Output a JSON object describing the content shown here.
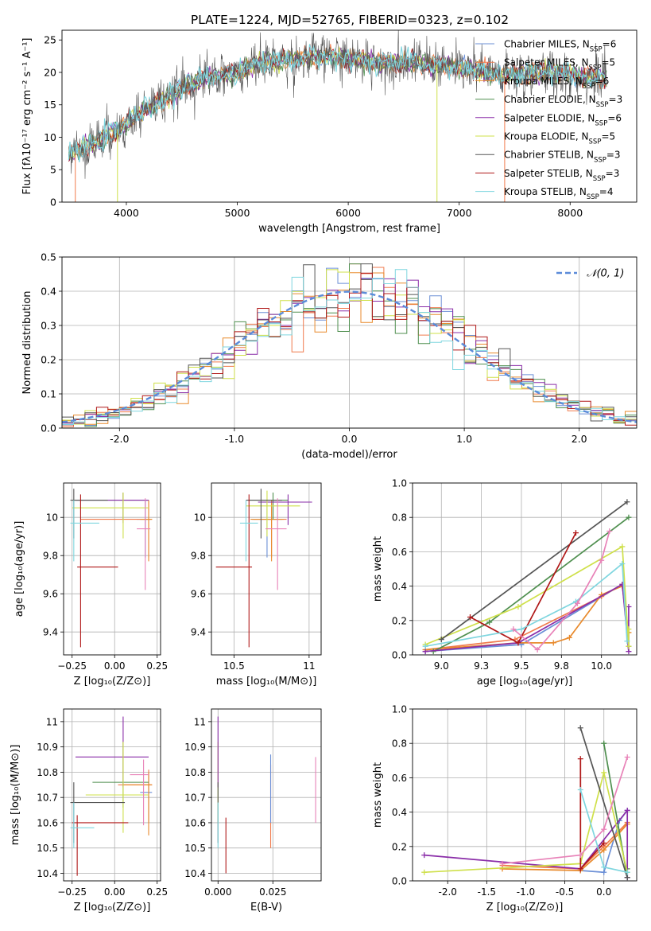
{
  "title": "PLATE=1224, MJD=52765, FIBERID=0323, z=0.102",
  "palette": {
    "Chabrier MILES": "#6b8fd6",
    "Salpeter MILES": "#f07a4c",
    "Kroupa MILES": "#e88a2c",
    "Chabrier ELODIE": "#4f8f4f",
    "Salpeter ELODIE": "#8a2da8",
    "Kroupa ELODIE": "#cfe04a",
    "Chabrier STELIB": "#555555",
    "Salpeter STELIB": "#b01818",
    "Kroupa STELIB": "#7fd6df",
    "extra_pink": "#e882b8",
    "gauss": "#5b8bd9"
  },
  "chart_data": [
    {
      "id": "spectrum",
      "type": "line",
      "xlabel": "wavelength [Angstrom, rest frame]",
      "ylabel": "Flux [fλ10⁻¹⁷ erg cm⁻² s⁻¹ A⁻¹]",
      "xlim": [
        3420,
        8600
      ],
      "ylim": [
        0,
        26.5
      ],
      "xticks": [
        4000,
        5000,
        6000,
        7000,
        8000
      ],
      "yticks": [
        0,
        5,
        10,
        15,
        20,
        25
      ],
      "grid": false,
      "legend_position": "top-right",
      "legend": [
        {
          "imf": "Chabrier",
          "lib": "MILES",
          "n": "6"
        },
        {
          "imf": "Salpeter",
          "lib": "MILES",
          "n": "5"
        },
        {
          "imf": "Kroupa",
          "lib": "MILES",
          "n": "6"
        },
        {
          "imf": "Chabrier",
          "lib": "ELODIE",
          "n": "3"
        },
        {
          "imf": "Salpeter",
          "lib": "ELODIE",
          "n": "6"
        },
        {
          "imf": "Kroupa",
          "lib": "ELODIE",
          "n": "5"
        },
        {
          "imf": "Chabrier",
          "lib": "STELIB",
          "n": "3"
        },
        {
          "imf": "Salpeter",
          "lib": "STELIB",
          "n": "3"
        },
        {
          "imf": "Kroupa",
          "lib": "STELIB",
          "n": "4"
        }
      ],
      "continuum_anchors": {
        "x": [
          3500,
          3700,
          3900,
          4000,
          4100,
          4300,
          4500,
          4700,
          5000,
          5200,
          5500,
          5800,
          6000,
          6300,
          6600,
          6900,
          7100,
          7400,
          7800,
          8300
        ],
        "y": [
          7.5,
          9,
          11,
          12,
          13.5,
          15.5,
          17.5,
          19,
          20,
          21.5,
          22,
          22.5,
          22,
          21.5,
          21.5,
          21,
          20.5,
          19.5,
          20,
          19
        ]
      },
      "dips": [
        {
          "x": 3540,
          "y": 0
        },
        {
          "x": 3920,
          "y": 0
        },
        {
          "x": 6800,
          "y": 0
        },
        {
          "x": 7410,
          "y": 0
        }
      ]
    },
    {
      "id": "residuals",
      "type": "step-histogram",
      "xlabel": "(data-model)/error",
      "ylabel": "Normed distribution",
      "xlim": [
        -2.5,
        2.5
      ],
      "ylim": [
        0,
        0.5
      ],
      "xticks": [
        -2,
        -1,
        0,
        1,
        2
      ],
      "yticks": [
        0,
        0.1,
        0.2,
        0.3,
        0.4,
        0.5
      ],
      "grid": true,
      "legend_label": "𝒩(0, 1)",
      "legend_position": "top-right",
      "bin_width": 0.1,
      "bins_start": -2.5
    },
    {
      "id": "age-vs-Z",
      "type": "errorbar",
      "xlabel": "Z [log₁₀(Z/Z⊙)]",
      "ylabel": "age  [log₁₀(age/yr)]",
      "xlim": [
        -0.3,
        0.27
      ],
      "ylim": [
        9.28,
        10.18
      ],
      "xticks": [
        -0.25,
        0.0,
        0.25
      ],
      "yticks": [
        9.4,
        9.6,
        9.8,
        10.0
      ],
      "grid": true,
      "points": [
        {
          "model": "Chabrier MILES",
          "x": 0.18,
          "y": 9.99,
          "xerr": [
            0.05,
            0.03
          ],
          "yerr": [
            0.2,
            0.1
          ]
        },
        {
          "model": "Salpeter MILES",
          "x": 0.2,
          "y": 9.99,
          "xerr": [
            0.4,
            0.02
          ],
          "yerr": [
            0.2,
            0.1
          ]
        },
        {
          "model": "Kroupa MILES",
          "x": 0.2,
          "y": 9.99,
          "xerr": [
            0.05,
            0.02
          ],
          "yerr": [
            0.22,
            0.1
          ]
        },
        {
          "model": "Chabrier ELODIE",
          "x": 0.05,
          "y": 10.09,
          "xerr": [
            0.3,
            0.15
          ],
          "yerr": [
            0.1,
            0.04
          ]
        },
        {
          "model": "Salpeter ELODIE",
          "x": 0.05,
          "y": 10.09,
          "xerr": [
            0.28,
            0.15
          ],
          "yerr": [
            0.12,
            0.04
          ]
        },
        {
          "model": "Kroupa ELODIE",
          "x": 0.05,
          "y": 10.05,
          "xerr": [
            0.3,
            0.15
          ],
          "yerr": [
            0.16,
            0.08
          ]
        },
        {
          "model": "Chabrier STELIB",
          "x": -0.24,
          "y": 10.09,
          "xerr": [
            0.02,
            0.2
          ],
          "yerr": [
            0.2,
            0.06
          ]
        },
        {
          "model": "Salpeter STELIB",
          "x": -0.2,
          "y": 9.74,
          "xerr": [
            0.02,
            0.22
          ],
          "yerr": [
            0.42,
            0.38
          ]
        },
        {
          "model": "Kroupa STELIB",
          "x": -0.24,
          "y": 9.97,
          "xerr": [
            0.02,
            0.15
          ],
          "yerr": [
            0.2,
            0.12
          ]
        },
        {
          "model": "extra_pink",
          "x": 0.18,
          "y": 9.94,
          "xerr": [
            0.05,
            0.03
          ],
          "yerr": [
            0.32,
            0.16
          ]
        }
      ]
    },
    {
      "id": "age-vs-mass",
      "type": "errorbar",
      "xlabel": "mass [log₁₀(M/M⊙)]",
      "ylabel": "",
      "xlim": [
        10.35,
        11.08
      ],
      "ylim": [
        9.28,
        10.18
      ],
      "xticks": [
        10.5,
        11.0
      ],
      "yticks": [
        9.4,
        9.6,
        9.8,
        10.0
      ],
      "grid": true,
      "points": [
        {
          "model": "Chabrier MILES",
          "x": 10.72,
          "y": 9.99,
          "xerr": [
            0.1,
            0.1
          ],
          "yerr": [
            0.2,
            0.1
          ]
        },
        {
          "model": "Salpeter MILES",
          "x": 10.75,
          "y": 9.99,
          "xerr": [
            0.12,
            0.1
          ],
          "yerr": [
            0.2,
            0.1
          ]
        },
        {
          "model": "Kroupa MILES",
          "x": 10.75,
          "y": 9.99,
          "xerr": [
            0.14,
            0.08
          ],
          "yerr": [
            0.22,
            0.1
          ]
        },
        {
          "model": "Chabrier ELODIE",
          "x": 10.76,
          "y": 10.09,
          "xerr": [
            0.16,
            0.1
          ],
          "yerr": [
            0.1,
            0.04
          ]
        },
        {
          "model": "Salpeter ELODIE",
          "x": 10.86,
          "y": 10.08,
          "xerr": [
            0.2,
            0.16
          ],
          "yerr": [
            0.12,
            0.04
          ]
        },
        {
          "model": "Kroupa ELODIE",
          "x": 10.72,
          "y": 10.06,
          "xerr": [
            0.14,
            0.22
          ],
          "yerr": [
            0.16,
            0.08
          ]
        },
        {
          "model": "Chabrier STELIB",
          "x": 10.68,
          "y": 10.09,
          "xerr": [
            0.1,
            0.14
          ],
          "yerr": [
            0.2,
            0.06
          ]
        },
        {
          "model": "Salpeter STELIB",
          "x": 10.6,
          "y": 9.74,
          "xerr": [
            0.22,
            0.02
          ],
          "yerr": [
            0.42,
            0.38
          ]
        },
        {
          "model": "Kroupa STELIB",
          "x": 10.58,
          "y": 9.97,
          "xerr": [
            0.04,
            0.08
          ],
          "yerr": [
            0.2,
            0.12
          ]
        },
        {
          "model": "extra_pink",
          "x": 10.79,
          "y": 9.94,
          "xerr": [
            0.08,
            0.06
          ],
          "yerr": [
            0.32,
            0.16
          ]
        }
      ]
    },
    {
      "id": "weight-vs-age",
      "type": "line",
      "xlabel": "age  [log₁₀(age/yr)]",
      "ylabel": "mass weight",
      "xlim": [
        8.82,
        10.22
      ],
      "ylim": [
        0,
        1
      ],
      "xticks": [
        9.0,
        9.25,
        9.5,
        9.75,
        10.0
      ],
      "yticks": [
        0.0,
        0.2,
        0.4,
        0.6,
        0.8,
        1.0
      ],
      "grid": true,
      "series": [
        {
          "model": "Chabrier MILES",
          "x": [
            8.9,
            9.5,
            10.13,
            10.17
          ],
          "y": [
            0.02,
            0.06,
            0.41,
            0.05
          ]
        },
        {
          "model": "Salpeter MILES",
          "x": [
            8.9,
            9.46,
            10.0,
            10.13
          ],
          "y": [
            0.03,
            0.09,
            0.34,
            0.41
          ]
        },
        {
          "model": "Kroupa MILES",
          "x": [
            8.9,
            9.48,
            9.7,
            9.8,
            10.0,
            10.13,
            10.17
          ],
          "y": [
            0.03,
            0.07,
            0.07,
            0.1,
            0.35,
            0.4,
            0.13
          ]
        },
        {
          "model": "Chabrier ELODIE",
          "x": [
            8.95,
            9.3,
            10.17
          ],
          "y": [
            0.02,
            0.19,
            0.8
          ]
        },
        {
          "model": "Salpeter ELODIE",
          "x": [
            8.9,
            9.48,
            10.13,
            10.17,
            10.17
          ],
          "y": [
            0.02,
            0.07,
            0.41,
            0.02,
            0.28
          ]
        },
        {
          "model": "Kroupa ELODIE",
          "x": [
            8.9,
            9.48,
            10.13,
            10.17,
            10.17
          ],
          "y": [
            0.06,
            0.28,
            0.63,
            0.05,
            0.15
          ]
        },
        {
          "model": "Chabrier STELIB",
          "x": [
            9.0,
            10.16
          ],
          "y": [
            0.09,
            0.89
          ]
        },
        {
          "model": "Salpeter STELIB",
          "x": [
            9.18,
            9.48,
            9.84
          ],
          "y": [
            0.22,
            0.07,
            0.71
          ]
        },
        {
          "model": "Kroupa STELIB",
          "x": [
            8.9,
            9.5,
            9.84,
            10.13,
            10.16
          ],
          "y": [
            0.05,
            0.15,
            0.31,
            0.53,
            0.08
          ]
        },
        {
          "model": "extra_pink",
          "x": [
            9.45,
            9.6,
            9.85,
            10.0,
            10.05
          ],
          "y": [
            0.15,
            0.03,
            0.3,
            0.55,
            0.72
          ]
        }
      ]
    },
    {
      "id": "mass-vs-Z",
      "type": "errorbar",
      "xlabel": "Z [log₁₀(Z/Z⊙)]",
      "ylabel": "mass [log₁₀(M/M⊙)]",
      "xlim": [
        -0.3,
        0.27
      ],
      "ylim": [
        10.37,
        11.05
      ],
      "xticks": [
        -0.25,
        0.0,
        0.25
      ],
      "yticks": [
        10.4,
        10.5,
        10.6,
        10.7,
        10.8,
        10.9,
        11.0
      ],
      "grid": true,
      "points": [
        {
          "model": "Chabrier MILES",
          "x": 0.2,
          "y": 10.72,
          "xerr": [
            0.05,
            0.02
          ],
          "yerr": [
            0.12,
            0.08
          ]
        },
        {
          "model": "Salpeter MILES",
          "x": 0.2,
          "y": 10.75,
          "xerr": [
            0.18,
            0.02
          ],
          "yerr": [
            0.15,
            0.06
          ]
        },
        {
          "model": "Kroupa MILES",
          "x": 0.2,
          "y": 10.75,
          "xerr": [
            0.15,
            0.02
          ],
          "yerr": [
            0.2,
            0.05
          ]
        },
        {
          "model": "Chabrier ELODIE",
          "x": 0.05,
          "y": 10.76,
          "xerr": [
            0.18,
            0.15
          ],
          "yerr": [
            0.1,
            0.16
          ]
        },
        {
          "model": "Salpeter ELODIE",
          "x": 0.05,
          "y": 10.86,
          "xerr": [
            0.28,
            0.15
          ],
          "yerr": [
            0.12,
            0.16
          ]
        },
        {
          "model": "Kroupa ELODIE",
          "x": 0.05,
          "y": 10.71,
          "xerr": [
            0.22,
            0.15
          ],
          "yerr": [
            0.15,
            0.21
          ]
        },
        {
          "model": "Chabrier STELIB",
          "x": -0.24,
          "y": 10.68,
          "xerr": [
            0.02,
            0.3
          ],
          "yerr": [
            0.16,
            0.08
          ]
        },
        {
          "model": "Salpeter STELIB",
          "x": -0.22,
          "y": 10.6,
          "xerr": [
            0.03,
            0.3
          ],
          "yerr": [
            0.21,
            0.03
          ]
        },
        {
          "model": "Kroupa STELIB",
          "x": -0.24,
          "y": 10.58,
          "xerr": [
            0.02,
            0.12
          ],
          "yerr": [
            0.08,
            0.1
          ]
        },
        {
          "model": "extra_pink",
          "x": 0.17,
          "y": 10.79,
          "xerr": [
            0.08,
            0.03
          ],
          "yerr": [
            0.2,
            0.06
          ]
        }
      ]
    },
    {
      "id": "mass-vs-EBV",
      "type": "errorbar",
      "xlabel": "E(B-V)",
      "ylabel": "",
      "xlim": [
        -0.003,
        0.047
      ],
      "ylim": [
        10.37,
        11.05
      ],
      "xticks": [
        0.0,
        0.025
      ],
      "yticks": [
        10.4,
        10.5,
        10.6,
        10.7,
        10.8,
        10.9,
        11.0
      ],
      "grid": true,
      "points": [
        {
          "model": "Kroupa ELODIE",
          "x": 0.0,
          "y": 10.75,
          "yerr": [
            0.15,
            0.17
          ]
        },
        {
          "model": "Salpeter ELODIE",
          "x": 0.0,
          "y": 10.86,
          "yerr": [
            0.12,
            0.16
          ]
        },
        {
          "model": "Chabrier STELIB",
          "x": 0.0,
          "y": 10.68,
          "yerr": [
            0.16,
            0.08
          ]
        },
        {
          "model": "Kroupa STELIB",
          "x": 0.0,
          "y": 10.58,
          "yerr": [
            0.08,
            0.1
          ]
        },
        {
          "model": "Salpeter STELIB",
          "x": 0.0036,
          "y": 10.55,
          "yerr": [
            0.15,
            0.07
          ]
        },
        {
          "model": "Salpeter MILES",
          "x": 0.024,
          "y": 10.65,
          "yerr": [
            0.15,
            0.18
          ]
        },
        {
          "model": "Chabrier MILES",
          "x": 0.024,
          "y": 10.72,
          "yerr": [
            0.12,
            0.15
          ]
        },
        {
          "model": "extra_pink",
          "x": 0.0445,
          "y": 10.73,
          "yerr": [
            0.13,
            0.13
          ]
        }
      ]
    },
    {
      "id": "weight-vs-Z",
      "type": "line",
      "xlabel": "Z [log₁₀(Z/Z⊙)]",
      "ylabel": "mass weight",
      "xlim": [
        -2.45,
        0.42
      ],
      "ylim": [
        0,
        1
      ],
      "xticks": [
        -2.0,
        -1.5,
        -1.0,
        -0.5,
        0.0
      ],
      "yticks": [
        0.0,
        0.2,
        0.4,
        0.6,
        0.8,
        1.0
      ],
      "grid": true,
      "series": [
        {
          "model": "Chabrier MILES",
          "x": [
            -0.3,
            0.0,
            0.2,
            0.3
          ],
          "y": [
            0.06,
            0.05,
            0.35,
            0.41
          ]
        },
        {
          "model": "Salpeter MILES",
          "x": [
            -1.3,
            -0.3,
            0.0,
            0.3
          ],
          "y": [
            0.09,
            0.07,
            0.2,
            0.34
          ]
        },
        {
          "model": "Kroupa MILES",
          "x": [
            -1.3,
            -0.3,
            0.0,
            0.3
          ],
          "y": [
            0.07,
            0.06,
            0.18,
            0.33
          ]
        },
        {
          "model": "Chabrier ELODIE",
          "x": [
            0.0,
            0.3,
            0.3
          ],
          "y": [
            0.8,
            0.02,
            0.07
          ]
        },
        {
          "model": "Salpeter ELODIE",
          "x": [
            -2.3,
            -0.3,
            0.3,
            0.3
          ],
          "y": [
            0.15,
            0.07,
            0.41,
            0.02
          ]
        },
        {
          "model": "Kroupa ELODIE",
          "x": [
            -2.3,
            -0.3,
            0.0,
            0.3
          ],
          "y": [
            0.05,
            0.1,
            0.63,
            0.05
          ]
        },
        {
          "model": "Chabrier STELIB",
          "x": [
            -0.3,
            0.3
          ],
          "y": [
            0.89,
            0.02
          ]
        },
        {
          "model": "Salpeter STELIB",
          "x": [
            -0.3,
            -0.3,
            0.0
          ],
          "y": [
            0.71,
            0.07,
            0.22
          ]
        },
        {
          "model": "Kroupa STELIB",
          "x": [
            -0.3,
            0.0,
            0.3
          ],
          "y": [
            0.53,
            0.08,
            0.05
          ]
        },
        {
          "model": "extra_pink",
          "x": [
            -1.3,
            -0.3,
            0.0,
            0.3
          ],
          "y": [
            0.1,
            0.15,
            0.3,
            0.72
          ]
        }
      ]
    }
  ]
}
